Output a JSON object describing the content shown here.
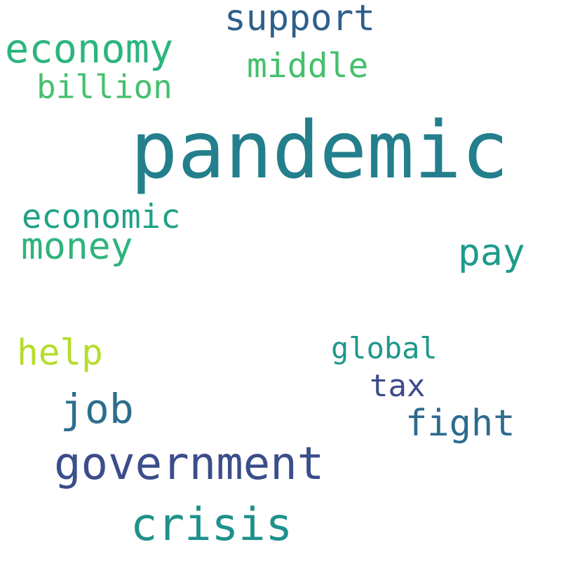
{
  "words": {
    "pandemic": {
      "text": "pandemic",
      "color": "#237f8c"
    },
    "economy": {
      "text": "economy",
      "color": "#2cb57e"
    },
    "support": {
      "text": "support",
      "color": "#2e5f8b"
    },
    "middle": {
      "text": "middle",
      "color": "#45c06d"
    },
    "billion": {
      "text": "billion",
      "color": "#45c06d"
    },
    "economic": {
      "text": "economic",
      "color": "#1fa187"
    },
    "money": {
      "text": "money",
      "color": "#2fb47c"
    },
    "pay": {
      "text": "pay",
      "color": "#1e9a8a"
    },
    "help": {
      "text": "help",
      "color": "#b5de2b"
    },
    "global": {
      "text": "global",
      "color": "#1f978b"
    },
    "tax": {
      "text": "tax",
      "color": "#3b4a8b"
    },
    "job": {
      "text": "job",
      "color": "#2d6e8e"
    },
    "fight": {
      "text": "fight",
      "color": "#2e6b8e"
    },
    "government": {
      "text": "government",
      "color": "#3b4d8a"
    },
    "crisis": {
      "text": "crisis",
      "color": "#1f918c"
    }
  }
}
